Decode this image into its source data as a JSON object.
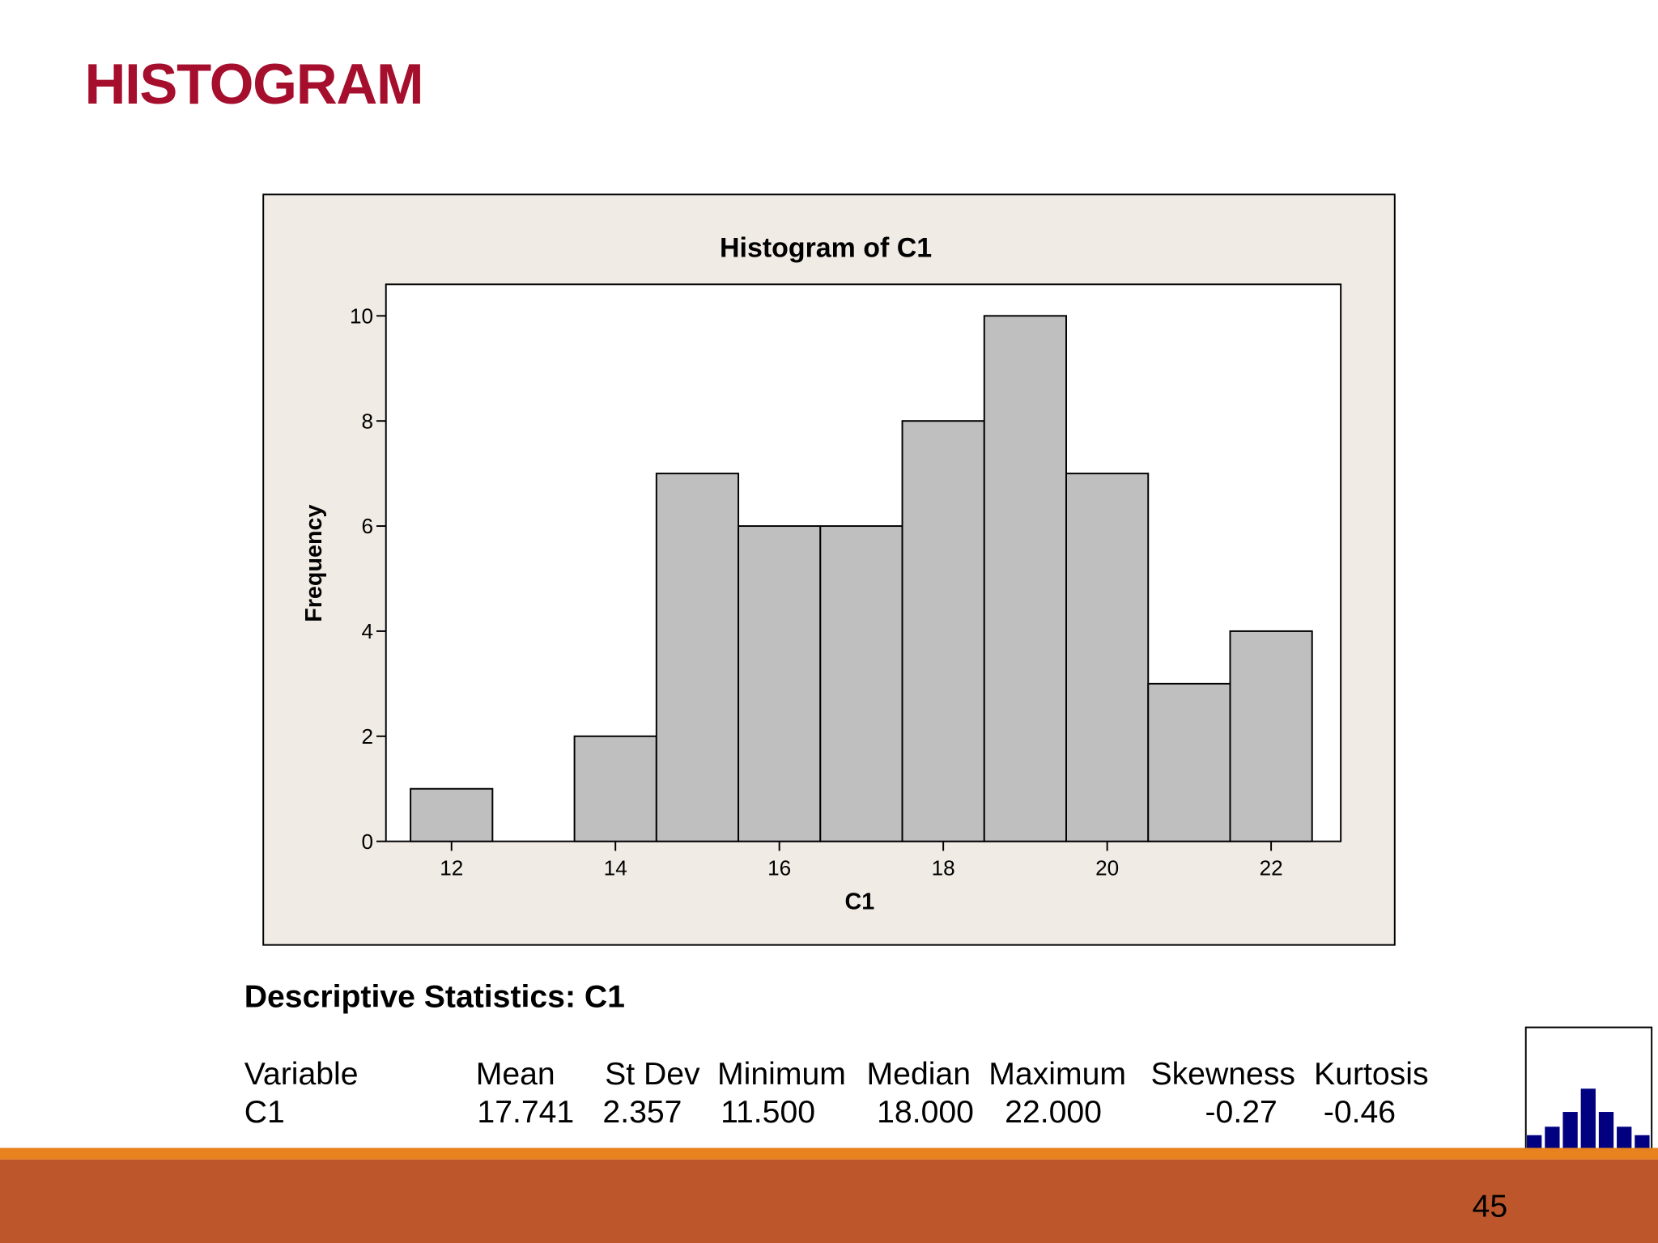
{
  "title": "HISTOGRAM",
  "chart_data": {
    "type": "histogram",
    "title": "Histogram of C1",
    "x_label": "C1",
    "y_label": "Frequency",
    "bins": [
      11.5,
      12.5,
      13.5,
      14.5,
      15.5,
      16.5,
      17.5,
      18.5,
      19.5,
      20.5,
      21.5,
      22.5
    ],
    "values": [
      1,
      0,
      2,
      7,
      6,
      6,
      8,
      10,
      7,
      3,
      4
    ],
    "color": "#c0bfc0",
    "xlim": [
      11.2,
      22.85
    ],
    "xticks": [
      12,
      14,
      16,
      18,
      20,
      22
    ],
    "ylim": [
      0,
      10.6
    ],
    "yticks": [
      0,
      2,
      4,
      6,
      8,
      10
    ]
  },
  "stats": {
    "heading": "Descriptive Statistics: C1",
    "columns": [
      "Variable",
      "Mean",
      "St Dev",
      "Minimum",
      "Median",
      "Maximum",
      "Skewness",
      "Kurtosis"
    ],
    "rows": [
      [
        "C1",
        "17.741",
        "2.357",
        "11.500",
        "18.000",
        "22.000",
        "-0.27",
        "-0.46"
      ]
    ]
  },
  "page_number": "45"
}
